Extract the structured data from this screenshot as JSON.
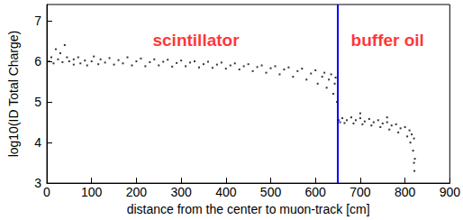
{
  "chart_data": {
    "type": "scatter",
    "x_label": "distance from the center to muon-track [cm]",
    "y_label": "log10(ID Total Charge)",
    "xlim": [
      0,
      900
    ],
    "xticks": [
      0,
      100,
      200,
      300,
      400,
      500,
      600,
      700,
      800,
      900
    ],
    "ylim": [
      3,
      7.4
    ],
    "yticks": [
      3,
      4,
      5,
      6,
      7
    ],
    "grid": false,
    "color": "#000000",
    "x": [
      5,
      10,
      15,
      20,
      25,
      30,
      35,
      40,
      45,
      50,
      60,
      60,
      70,
      75,
      85,
      90,
      100,
      105,
      115,
      120,
      130,
      140,
      150,
      160,
      170,
      180,
      190,
      200,
      210,
      220,
      230,
      240,
      250,
      260,
      270,
      280,
      290,
      300,
      310,
      320,
      330,
      340,
      350,
      360,
      370,
      380,
      390,
      400,
      410,
      420,
      430,
      440,
      450,
      460,
      470,
      480,
      490,
      500,
      510,
      520,
      530,
      540,
      550,
      560,
      570,
      580,
      590,
      600,
      605,
      615,
      620,
      625,
      630,
      635,
      640,
      643,
      645,
      648,
      650,
      650,
      652,
      655,
      660,
      665,
      670,
      680,
      685,
      690,
      700,
      705,
      710,
      720,
      725,
      730,
      740,
      745,
      750,
      760,
      765,
      770,
      780,
      785,
      790,
      800,
      805,
      810,
      812,
      815,
      818,
      820,
      821,
      820,
      822,
      760,
      700
    ],
    "values": [
      6.0,
      6.1,
      5.95,
      6.3,
      6.05,
      6.2,
      5.98,
      6.4,
      6.1,
      6.0,
      6.05,
      5.92,
      6.1,
      5.95,
      6.02,
      5.9,
      6.0,
      6.12,
      5.93,
      6.05,
      5.97,
      6.08,
      5.92,
      6.03,
      5.95,
      6.1,
      5.9,
      6.0,
      6.07,
      5.88,
      5.98,
      6.05,
      5.9,
      5.99,
      6.04,
      5.87,
      5.96,
      6.02,
      5.88,
      5.97,
      6.0,
      5.85,
      5.93,
      5.99,
      5.84,
      5.92,
      5.97,
      5.82,
      5.9,
      5.95,
      5.8,
      5.88,
      5.93,
      5.76,
      5.86,
      5.9,
      5.72,
      5.83,
      5.88,
      5.68,
      5.8,
      5.85,
      5.62,
      5.76,
      5.82,
      5.55,
      5.7,
      5.78,
      5.45,
      5.62,
      5.72,
      5.35,
      5.55,
      5.68,
      5.2,
      5.45,
      5.6,
      5.0,
      4.6,
      4.85,
      4.55,
      4.5,
      4.6,
      4.48,
      4.55,
      4.62,
      4.47,
      4.55,
      4.6,
      4.45,
      4.52,
      4.58,
      4.42,
      4.5,
      4.55,
      4.38,
      4.47,
      4.5,
      4.32,
      4.42,
      4.45,
      4.25,
      4.35,
      4.38,
      4.15,
      4.3,
      4.0,
      4.2,
      3.8,
      3.5,
      3.3,
      4.1,
      3.6,
      4.62,
      4.72
    ],
    "boundary": {
      "x": 650,
      "color": "#0000ff"
    },
    "annotations": [
      {
        "text": "scintillator",
        "x": 333,
        "y": 6.53,
        "color": "#ff0000"
      },
      {
        "text": "buffer oil",
        "x": 761,
        "y": 6.53,
        "color": "#ff0000"
      }
    ]
  }
}
